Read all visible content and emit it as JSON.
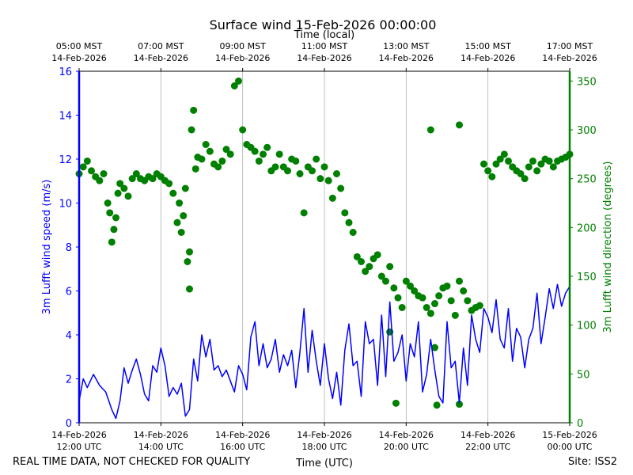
{
  "chart_data": {
    "type": "line",
    "title": "Surface wind 15-Feb-2026 00:00:00",
    "top_axis_label": "Time (local)",
    "top_ticks": [
      {
        "line1": "05:00 MST",
        "line2": "14-Feb-2026"
      },
      {
        "line1": "07:00 MST",
        "line2": "14-Feb-2026"
      },
      {
        "line1": "09:00 MST",
        "line2": "14-Feb-2026"
      },
      {
        "line1": "11:00 MST",
        "line2": "14-Feb-2026"
      },
      {
        "line1": "13:00 MST",
        "line2": "14-Feb-2026"
      },
      {
        "line1": "15:00 MST",
        "line2": "14-Feb-2026"
      },
      {
        "line1": "17:00 MST",
        "line2": "14-Feb-2026"
      }
    ],
    "bottom_ticks": [
      {
        "line1": "14-Feb-2026",
        "line2": "12:00 UTC"
      },
      {
        "line1": "14-Feb-2026",
        "line2": "14:00 UTC"
      },
      {
        "line1": "14-Feb-2026",
        "line2": "16:00 UTC"
      },
      {
        "line1": "14-Feb-2026",
        "line2": "18:00 UTC"
      },
      {
        "line1": "14-Feb-2026",
        "line2": "20:00 UTC"
      },
      {
        "line1": "14-Feb-2026",
        "line2": "22:00 UTC"
      },
      {
        "line1": "15-Feb-2026",
        "line2": "00:00 UTC"
      }
    ],
    "xlabel": "Time (UTC)",
    "xlim_hours_utc": [
      12,
      24
    ],
    "grid": "vertical",
    "y_left": {
      "label": "3m Lufft wind speed (m/s)",
      "ylim": [
        0,
        16
      ],
      "ticks": [
        0,
        2,
        4,
        6,
        8,
        10,
        12,
        14,
        16
      ],
      "color": "#0000ff"
    },
    "y_right": {
      "label": "3m Lufft wind direction (degrees)",
      "ylim": [
        0,
        360
      ],
      "ticks": [
        0,
        50,
        100,
        150,
        200,
        250,
        300,
        350
      ],
      "color": "#008000"
    },
    "series": [
      {
        "name": "3m Lufft wind speed",
        "axis": "left",
        "style": "line",
        "color": "#0000ff",
        "x": [
          12.0,
          12.1,
          12.2,
          12.35,
          12.5,
          12.65,
          12.8,
          12.9,
          13.0,
          13.1,
          13.2,
          13.3,
          13.4,
          13.5,
          13.6,
          13.7,
          13.8,
          13.9,
          14.0,
          14.1,
          14.2,
          14.3,
          14.4,
          14.5,
          14.6,
          14.7,
          14.8,
          14.9,
          15.0,
          15.1,
          15.2,
          15.3,
          15.4,
          15.5,
          15.6,
          15.7,
          15.8,
          15.9,
          16.0,
          16.1,
          16.2,
          16.3,
          16.4,
          16.5,
          16.6,
          16.7,
          16.8,
          16.9,
          17.0,
          17.1,
          17.2,
          17.3,
          17.4,
          17.5,
          17.6,
          17.7,
          17.8,
          17.9,
          18.0,
          18.1,
          18.2,
          18.3,
          18.4,
          18.5,
          18.6,
          18.7,
          18.8,
          18.9,
          19.0,
          19.1,
          19.2,
          19.3,
          19.4,
          19.5,
          19.6,
          19.7,
          19.8,
          19.9,
          20.0,
          20.1,
          20.2,
          20.3,
          20.4,
          20.5,
          20.6,
          20.7,
          20.8,
          20.9,
          21.0,
          21.1,
          21.2,
          21.3,
          21.4,
          21.5,
          21.6,
          21.7,
          21.8,
          21.9,
          22.0,
          22.1,
          22.2,
          22.3,
          22.4,
          22.5,
          22.6,
          22.7,
          22.8,
          22.9,
          23.0,
          23.1,
          23.2,
          23.3,
          23.4,
          23.5,
          23.6,
          23.7,
          23.8,
          23.9,
          24.0
        ],
        "values": [
          1.0,
          2.0,
          1.6,
          2.2,
          1.7,
          1.4,
          0.6,
          0.2,
          1.0,
          2.5,
          1.8,
          2.4,
          2.9,
          2.2,
          1.3,
          1.0,
          2.6,
          2.3,
          3.4,
          2.6,
          1.2,
          1.6,
          1.3,
          1.8,
          0.3,
          0.6,
          2.9,
          1.9,
          4.0,
          3.0,
          3.8,
          2.4,
          2.6,
          2.1,
          2.4,
          1.9,
          1.4,
          2.6,
          2.2,
          1.5,
          3.9,
          4.6,
          2.6,
          3.6,
          2.5,
          2.9,
          3.8,
          2.3,
          3.1,
          2.6,
          3.3,
          1.6,
          3.2,
          5.2,
          2.3,
          4.2,
          2.8,
          1.7,
          3.6,
          2.0,
          1.1,
          2.3,
          0.8,
          3.3,
          4.5,
          2.6,
          2.8,
          1.2,
          4.6,
          3.6,
          3.8,
          1.7,
          4.9,
          2.1,
          5.5,
          2.8,
          3.2,
          4.0,
          1.9,
          3.6,
          3.0,
          4.6,
          1.4,
          2.2,
          3.8,
          2.4,
          1.2,
          0.9,
          4.6,
          2.5,
          2.8,
          0.9,
          3.4,
          1.7,
          4.9,
          3.8,
          3.2,
          5.2,
          4.8,
          4.1,
          5.6,
          3.8,
          3.4,
          5.2,
          2.8,
          4.3,
          3.9,
          2.5,
          3.8,
          4.3,
          5.9,
          3.6,
          4.8,
          6.1,
          5.2,
          6.3,
          5.3,
          5.9,
          6.2
        ],
        "description": "Time series sampled from the plot; range approx 0 to 6.9 m/s"
      },
      {
        "name": "3m Lufft wind direction",
        "axis": "right",
        "style": "scatter",
        "color": "#008000",
        "x": [
          12.0,
          12.1,
          12.2,
          12.3,
          12.4,
          12.5,
          12.6,
          12.7,
          12.75,
          12.8,
          12.85,
          12.9,
          12.95,
          13.0,
          13.1,
          13.2,
          13.3,
          13.4,
          13.5,
          13.6,
          13.7,
          13.8,
          13.9,
          14.0,
          14.1,
          14.2,
          14.3,
          14.4,
          14.45,
          14.5,
          14.55,
          14.6,
          14.65,
          14.7,
          14.75,
          14.8,
          14.85,
          14.9,
          15.0,
          15.1,
          15.2,
          15.3,
          15.4,
          15.5,
          15.6,
          15.7,
          15.8,
          15.9,
          16.0,
          16.1,
          16.2,
          16.3,
          16.4,
          16.5,
          16.6,
          16.7,
          16.8,
          16.9,
          17.0,
          17.1,
          17.2,
          17.3,
          17.4,
          17.5,
          17.6,
          17.7,
          17.8,
          17.9,
          18.0,
          18.1,
          18.2,
          18.3,
          18.4,
          18.5,
          18.6,
          18.7,
          18.8,
          18.9,
          19.0,
          19.1,
          19.2,
          19.3,
          19.4,
          19.5,
          19.6,
          19.7,
          19.8,
          19.9,
          20.0,
          20.1,
          20.2,
          20.3,
          20.4,
          20.5,
          20.6,
          20.7,
          20.8,
          20.9,
          21.0,
          21.1,
          21.2,
          21.3,
          21.4,
          21.5,
          21.6,
          21.7,
          21.8,
          21.9,
          22.0,
          22.1,
          22.2,
          22.3,
          22.4,
          22.5,
          22.6,
          22.7,
          22.8,
          22.9,
          23.0,
          23.1,
          23.2,
          23.3,
          23.4,
          23.5,
          23.6,
          23.7,
          23.8,
          23.9,
          24.0
        ],
        "values": [
          255,
          262,
          268,
          258,
          252,
          248,
          255,
          225,
          215,
          185,
          198,
          210,
          235,
          245,
          240,
          232,
          250,
          255,
          250,
          248,
          252,
          250,
          255,
          252,
          248,
          245,
          235,
          205,
          225,
          195,
          212,
          240,
          165,
          175,
          300,
          320,
          260,
          272,
          270,
          285,
          278,
          265,
          262,
          268,
          280,
          275,
          345,
          350,
          300,
          285,
          282,
          278,
          268,
          275,
          282,
          258,
          262,
          275,
          262,
          258,
          270,
          268,
          255,
          215,
          262,
          258,
          270,
          250,
          262,
          248,
          230,
          255,
          240,
          215,
          205,
          195,
          170,
          165,
          155,
          160,
          168,
          172,
          150,
          145,
          160,
          138,
          128,
          118,
          145,
          140,
          135,
          130,
          128,
          118,
          112,
          122,
          130,
          138,
          140,
          125,
          110,
          145,
          135,
          125,
          115,
          118,
          120,
          265,
          258,
          252,
          265,
          270,
          275,
          268,
          262,
          258,
          255,
          250,
          262,
          268,
          258,
          265,
          270,
          268,
          262,
          268,
          270,
          272,
          275
        ],
        "outliers": [
          {
            "x": 19.6,
            "y": 93
          },
          {
            "x": 19.75,
            "y": 20
          },
          {
            "x": 20.6,
            "y": 300
          },
          {
            "x": 20.7,
            "y": 77
          },
          {
            "x": 20.75,
            "y": 18
          },
          {
            "x": 21.3,
            "y": 19
          },
          {
            "x": 21.3,
            "y": 305
          },
          {
            "x": 14.7,
            "y": 137
          }
        ],
        "description": "Scatter of wind direction, range approx 18 to 355 degrees"
      }
    ],
    "footer_left": "REAL TIME DATA, NOT CHECKED FOR QUALITY",
    "footer_right": "Site: ISS2"
  }
}
